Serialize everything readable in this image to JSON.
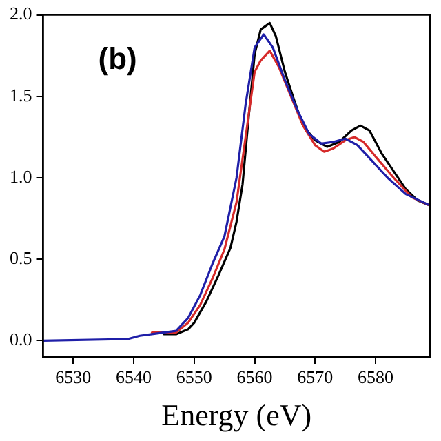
{
  "chart_data": {
    "type": "line",
    "xlabel": "Energy (eV)",
    "annotations": [
      "(b)"
    ],
    "xlim": [
      6525,
      6589
    ],
    "xticks": [
      6530,
      6540,
      6550,
      6560,
      6570,
      6580
    ],
    "ylim": [
      -0.1,
      2.0
    ],
    "yticks": [
      {
        "value": 0,
        "label": "0.0"
      },
      {
        "value": 0.5,
        "label": "0.5"
      },
      {
        "value": 1,
        "label": "1.0"
      },
      {
        "value": 1.5,
        "label": "1.5"
      },
      {
        "value": 2,
        "label": "2.0"
      }
    ],
    "grid": false,
    "legend": false,
    "marker": "none",
    "line_style": "solid",
    "series": [
      {
        "color": "#000000",
        "x": [
          6545,
          6547,
          6549,
          6550,
          6552,
          6554,
          6556,
          6557,
          6558,
          6559,
          6560,
          6561,
          6562.5,
          6563.5,
          6565,
          6566.5,
          6568,
          6570,
          6572,
          6574,
          6576,
          6577.5,
          6579,
          6581,
          6583,
          6585,
          6587,
          6589
        ],
        "values": [
          0.04,
          0.04,
          0.07,
          0.11,
          0.24,
          0.4,
          0.57,
          0.73,
          0.96,
          1.37,
          1.76,
          1.91,
          1.95,
          1.87,
          1.65,
          1.48,
          1.32,
          1.23,
          1.19,
          1.22,
          1.29,
          1.32,
          1.29,
          1.15,
          1.04,
          0.93,
          0.86,
          0.83
        ]
      },
      {
        "color": "#d62a2a",
        "x": [
          6543,
          6547,
          6549,
          6551,
          6553,
          6555,
          6557,
          6558.5,
          6560,
          6561,
          6562.5,
          6564,
          6566,
          6568,
          6570,
          6571.5,
          6573,
          6575,
          6576.5,
          6578,
          6580,
          6583,
          6586,
          6589
        ],
        "values": [
          0.05,
          0.05,
          0.11,
          0.22,
          0.38,
          0.56,
          0.85,
          1.25,
          1.65,
          1.72,
          1.78,
          1.68,
          1.5,
          1.32,
          1.2,
          1.16,
          1.18,
          1.23,
          1.25,
          1.22,
          1.13,
          1.0,
          0.88,
          0.83
        ]
      },
      {
        "color": "#1f1fa8",
        "x": [
          6525,
          6539,
          6541,
          6543,
          6547,
          6549,
          6551,
          6553,
          6555,
          6557,
          6558.5,
          6560,
          6561.5,
          6563,
          6565,
          6567,
          6569,
          6571,
          6573,
          6575,
          6577,
          6579,
          6582,
          6585,
          6589
        ],
        "values": [
          0,
          0.01,
          0.03,
          0.04,
          0.06,
          0.14,
          0.28,
          0.47,
          0.64,
          1.0,
          1.45,
          1.8,
          1.88,
          1.8,
          1.6,
          1.42,
          1.27,
          1.21,
          1.22,
          1.24,
          1.2,
          1.12,
          1.0,
          0.9,
          0.83
        ]
      }
    ]
  }
}
